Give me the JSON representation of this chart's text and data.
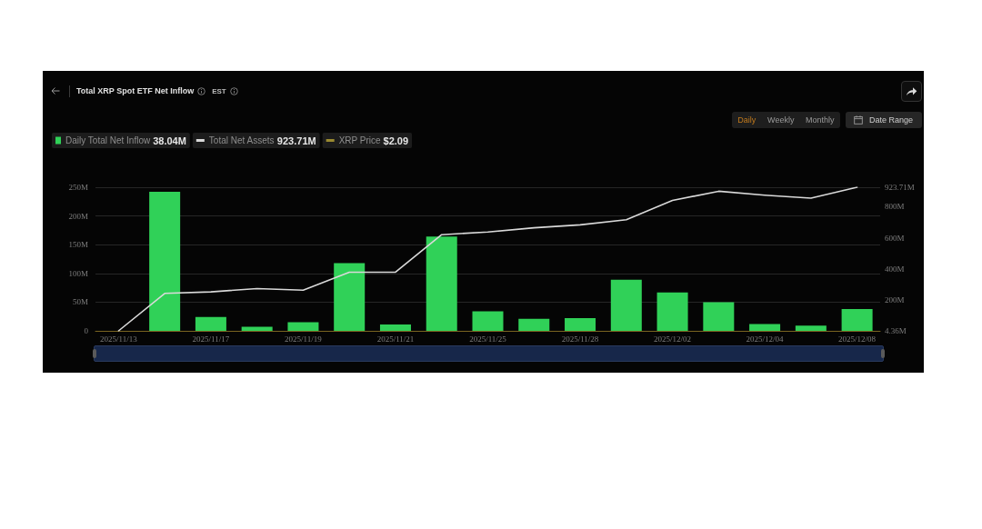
{
  "chart_data": {
    "type": "bar",
    "title": "Total XRP Spot ETF Net Inflow",
    "categories": [
      "2025/11/13",
      null,
      "2025/11/17",
      null,
      "2025/11/19",
      null,
      "2025/11/21",
      null,
      "2025/11/25",
      null,
      "2025/11/28",
      null,
      "2025/12/02",
      null,
      "2025/12/04",
      null,
      "2025/12/08"
    ],
    "series": [
      {
        "name": "Daily Total Net Inflow 38.04M",
        "color": "#30d158",
        "values": [
          null,
          242,
          24,
          7,
          15,
          118,
          11,
          164,
          34,
          21,
          22,
          89,
          67,
          50,
          12,
          9,
          38.04
        ]
      },
      {
        "name": "Total Net Assets 923.71M",
        "type": "line",
        "axis": "y2",
        "color": "#d9d9d9",
        "values": [
          4.36,
          244,
          254,
          275,
          265,
          380,
          380,
          620,
          637,
          664,
          683,
          716,
          839,
          898,
          873,
          854,
          923.71
        ]
      },
      {
        "name": "XRP Price $2.09",
        "type": "line",
        "color": "#9a8a30",
        "values": [
          null,
          null,
          null,
          null,
          null,
          null,
          null,
          null,
          null,
          null,
          null,
          null,
          null,
          null,
          null,
          null,
          null
        ]
      }
    ],
    "ylim": [
      0,
      250
    ],
    "yticks": [
      0,
      {
        "value": 50,
        "label": "50M"
      },
      {
        "value": 100,
        "label": "100M"
      },
      {
        "value": 150,
        "label": "150M"
      },
      {
        "value": 200,
        "label": "200M"
      },
      {
        "value": 250,
        "label": "250M"
      }
    ],
    "y2lim": [
      4.36,
      923.71
    ],
    "y2ticks": [
      {
        "value": 4.36,
        "label": "4.36M"
      },
      {
        "value": 200,
        "label": "200M"
      },
      {
        "value": 400,
        "label": "400M"
      },
      {
        "value": 600,
        "label": "600M"
      },
      {
        "value": 800,
        "label": "800M"
      },
      {
        "value": 923.71,
        "label": "923.71M"
      }
    ],
    "grid": "y",
    "legend": "top left",
    "annotations": [
      "EST",
      "Daily",
      "Weekly",
      "Monthly",
      "Date Range"
    ]
  }
}
